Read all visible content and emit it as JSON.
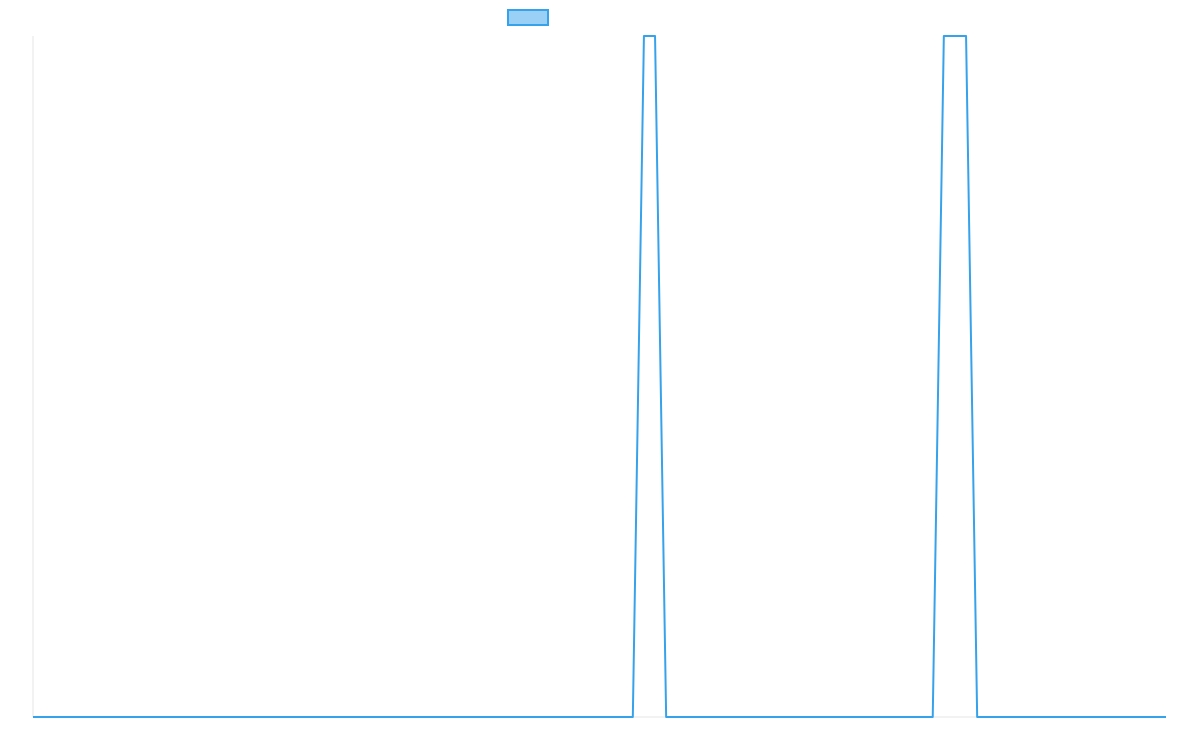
{
  "chart_data": {
    "type": "line",
    "title": "",
    "xlabel": "",
    "ylabel": "",
    "x": [
      0,
      1,
      2,
      3,
      4,
      5,
      6,
      7,
      8,
      9,
      10,
      11,
      12,
      13,
      14,
      15,
      16,
      17,
      18,
      19,
      20,
      21,
      22,
      23,
      24,
      25,
      26,
      27,
      28,
      29,
      30,
      31,
      32,
      33,
      34,
      35,
      36,
      37,
      38,
      39,
      40,
      41,
      42,
      43,
      44,
      45,
      46,
      47,
      48,
      49,
      50,
      51,
      52,
      53,
      54,
      55,
      56,
      57,
      58,
      59,
      60,
      61,
      62,
      63,
      64,
      65,
      66,
      67,
      68,
      69,
      70,
      71,
      72,
      73,
      74,
      75,
      76,
      77,
      78,
      79,
      80,
      81,
      82,
      83,
      84,
      85,
      86,
      87,
      88,
      89,
      90,
      91,
      92,
      93,
      94,
      95,
      96,
      97,
      98,
      99,
      100,
      101,
      102
    ],
    "series": [
      {
        "color": "#36a2eb",
        "fill": "#9ad0f5",
        "values": [
          0,
          0,
          0,
          0,
          0,
          0,
          0,
          0,
          0,
          0,
          0,
          0,
          0,
          0,
          0,
          0,
          0,
          0,
          0,
          0,
          0,
          0,
          0,
          0,
          0,
          0,
          0,
          0,
          0,
          0,
          0,
          0,
          0,
          0,
          0,
          0,
          0,
          0,
          0,
          0,
          0,
          0,
          0,
          0,
          0,
          0,
          0,
          0,
          0,
          0,
          0,
          0,
          0,
          0,
          0,
          1,
          1,
          0,
          0,
          0,
          0,
          0,
          0,
          0,
          0,
          0,
          0,
          0,
          0,
          0,
          0,
          0,
          0,
          0,
          0,
          0,
          0,
          0,
          0,
          0,
          0,
          0,
          1,
          1,
          1,
          0,
          0,
          0,
          0,
          0,
          0,
          0,
          0,
          0,
          0,
          0,
          0,
          0,
          0,
          0,
          0,
          0,
          0
        ]
      }
    ],
    "xlim": [
      0,
      102
    ],
    "ylim": [
      0,
      1
    ],
    "grid": false,
    "legend": {
      "position": "top",
      "entries": [
        {
          "label": "",
          "color": "#9ad0f5",
          "border": "#36a2eb"
        }
      ]
    }
  }
}
